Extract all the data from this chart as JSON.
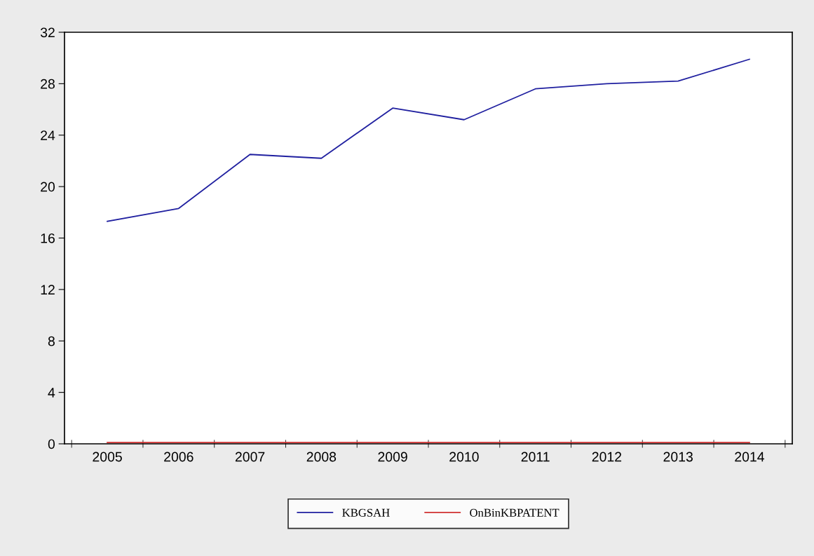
{
  "chart_data": {
    "type": "line",
    "categories": [
      "2005",
      "2006",
      "2007",
      "2008",
      "2009",
      "2010",
      "2011",
      "2012",
      "2013",
      "2014"
    ],
    "series": [
      {
        "name": "KBGSAH",
        "color": "#2020a0",
        "values": [
          17.3,
          18.3,
          22.5,
          22.2,
          26.1,
          25.2,
          27.6,
          28.0,
          28.2,
          29.9
        ]
      },
      {
        "name": "OnBinKBPATENT",
        "color": "#d03030",
        "values": [
          0.1,
          0.1,
          0.1,
          0.1,
          0.1,
          0.1,
          0.1,
          0.1,
          0.1,
          0.1
        ]
      }
    ],
    "ylim": [
      0,
      32
    ],
    "yticks": [
      0,
      4,
      8,
      12,
      16,
      20,
      24,
      28,
      32
    ],
    "grid": false,
    "legend": "bottom",
    "marker": "none",
    "line_style": "solid"
  }
}
